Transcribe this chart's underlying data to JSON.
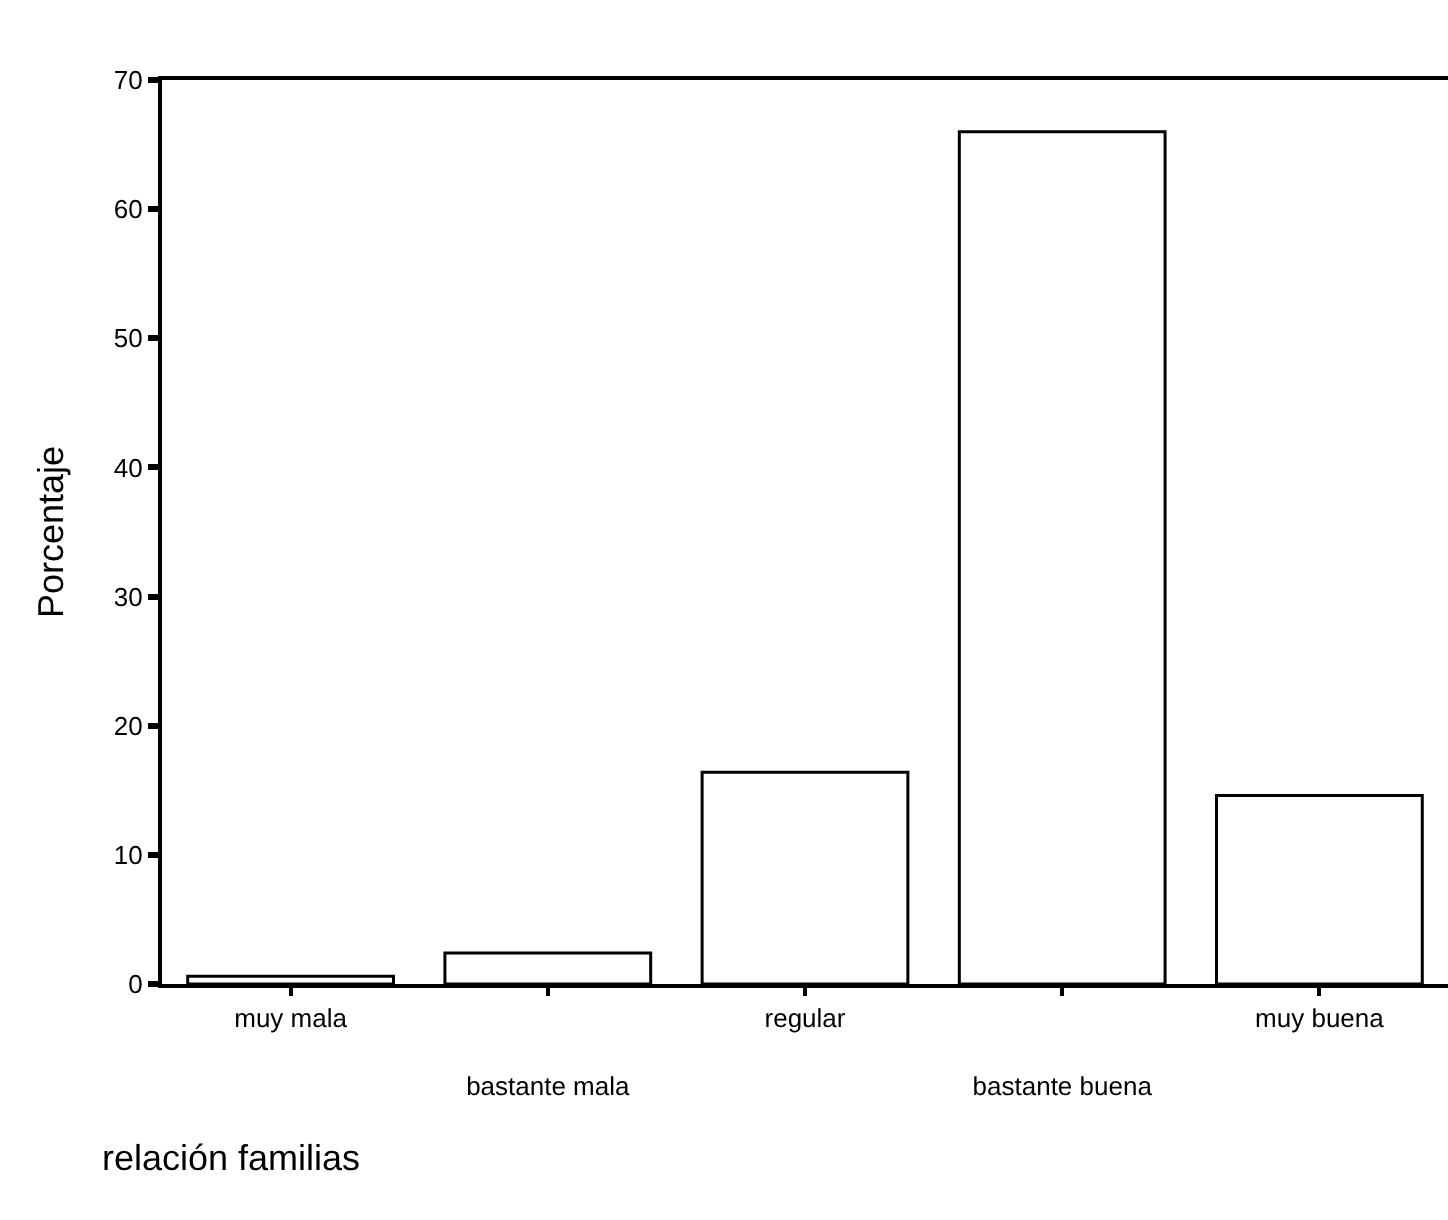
{
  "chart_data": {
    "type": "bar",
    "xlabel": "relación familias",
    "ylabel": "Porcentaje",
    "categories": [
      "muy mala",
      "bastante mala",
      "regular",
      "bastante buena",
      "muy buena"
    ],
    "values": [
      0.6,
      2.4,
      16.4,
      66,
      14.6
    ],
    "color": "#ffffff",
    "ylim": [
      0,
      70
    ],
    "yticks": [
      0,
      10,
      20,
      30,
      40,
      50,
      60,
      70
    ],
    "legend": false
  }
}
